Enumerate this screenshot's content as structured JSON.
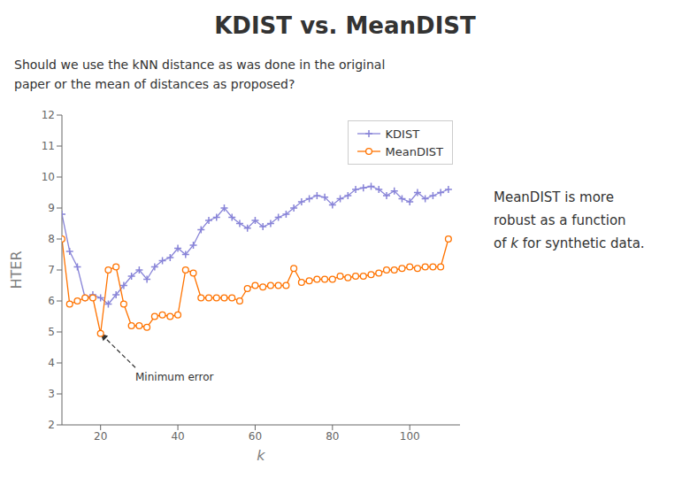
{
  "chart_data": {
    "type": "line",
    "title": "KDIST vs. MeanDIST",
    "subtitle": [
      "Should we use the kNN distance as was done in the original",
      "paper or the mean of distances as proposed?"
    ],
    "xlabel": "k",
    "ylabel": "HTER",
    "xlim": [
      10,
      113
    ],
    "ylim": [
      2,
      12
    ],
    "xticks": [
      20,
      40,
      60,
      80,
      100
    ],
    "yticks": [
      2,
      3,
      4,
      5,
      6,
      7,
      8,
      9,
      10,
      11,
      12
    ],
    "grid": false,
    "legend": "upper right",
    "x": [
      10,
      12,
      14,
      16,
      18,
      20,
      22,
      24,
      26,
      28,
      30,
      32,
      34,
      36,
      38,
      40,
      42,
      44,
      46,
      48,
      50,
      52,
      54,
      56,
      58,
      60,
      62,
      64,
      66,
      68,
      70,
      72,
      74,
      76,
      78,
      80,
      82,
      84,
      86,
      88,
      90,
      92,
      94,
      96,
      98,
      100,
      102,
      104,
      106,
      108,
      110
    ],
    "series": [
      {
        "name": "KDIST",
        "color": "#8884d8",
        "marker": "plus",
        "values": [
          8.8,
          7.6,
          7.1,
          6.1,
          6.2,
          6.1,
          5.9,
          6.2,
          6.5,
          6.8,
          7.0,
          6.7,
          7.1,
          7.3,
          7.4,
          7.7,
          7.5,
          7.8,
          8.3,
          8.6,
          8.7,
          9.0,
          8.7,
          8.5,
          8.35,
          8.6,
          8.4,
          8.5,
          8.7,
          8.8,
          9.0,
          9.2,
          9.3,
          9.4,
          9.35,
          9.1,
          9.3,
          9.4,
          9.6,
          9.65,
          9.7,
          9.6,
          9.4,
          9.55,
          9.3,
          9.2,
          9.5,
          9.3,
          9.4,
          9.5,
          9.6
        ]
      },
      {
        "name": "MeanDIST",
        "color": "#ff7300",
        "marker": "circle",
        "values": [
          8.0,
          5.9,
          6.0,
          6.1,
          6.1,
          4.95,
          7.0,
          7.1,
          5.9,
          5.2,
          5.2,
          5.15,
          5.5,
          5.55,
          5.5,
          5.55,
          7.0,
          6.9,
          6.1,
          6.1,
          6.1,
          6.1,
          6.1,
          6.0,
          6.4,
          6.5,
          6.45,
          6.5,
          6.5,
          6.5,
          7.05,
          6.6,
          6.65,
          6.7,
          6.7,
          6.7,
          6.8,
          6.75,
          6.8,
          6.8,
          6.85,
          6.9,
          7.0,
          7.0,
          7.05,
          7.1,
          7.05,
          7.1,
          7.1,
          7.1,
          8.0
        ]
      }
    ],
    "annotations": [
      {
        "text": "Minimum error",
        "xy": [
          20,
          4.95
        ],
        "xytext": [
          29,
          3.85
        ]
      },
      {
        "text": [
          "MeanDIST is more",
          "robust as a function",
          "of k for synthetic data."
        ]
      }
    ]
  }
}
